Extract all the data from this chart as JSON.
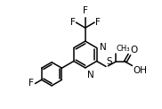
{
  "bg_color": "#ffffff",
  "line_color": "#000000",
  "font_size": 7.5,
  "bond_width": 1.1,
  "figsize": [
    1.82,
    1.22
  ],
  "dpi": 100,
  "xlim": [
    0.0,
    1.0
  ],
  "ylim": [
    0.0,
    1.0
  ]
}
